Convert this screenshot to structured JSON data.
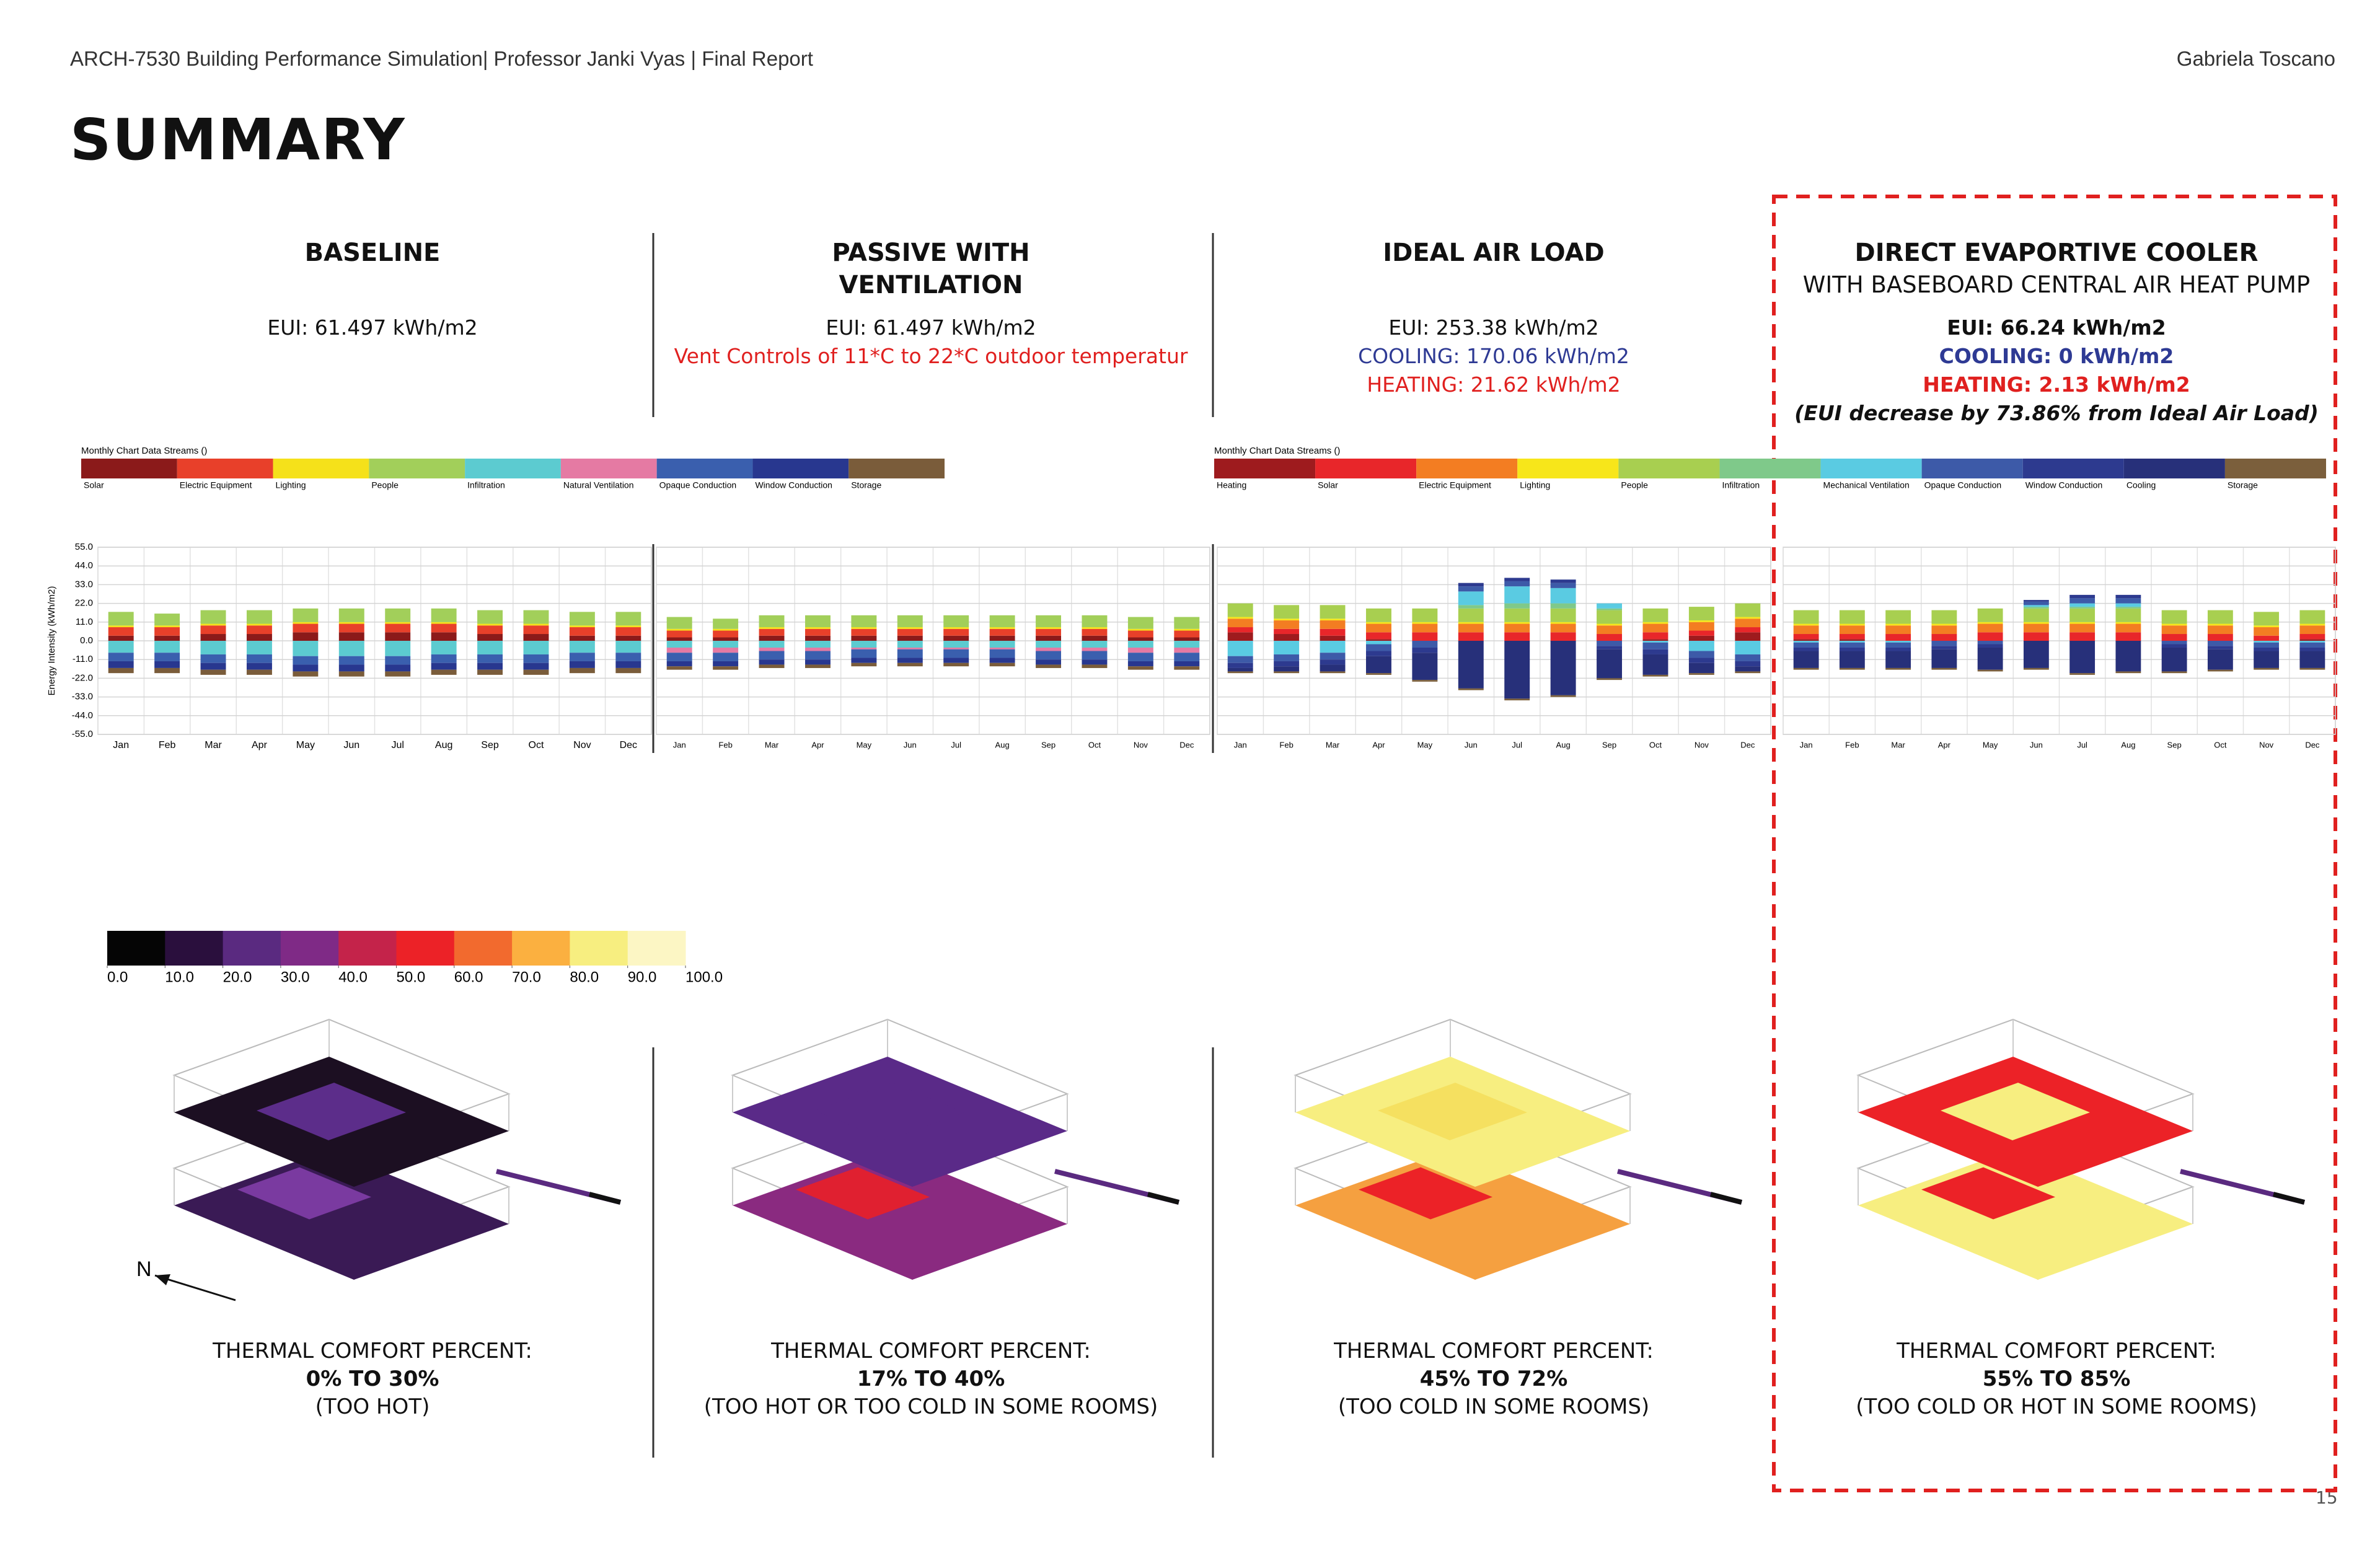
{
  "header": {
    "course": "ARCH-7530 Building Performance Simulation| Professor Janki Vyas | Final Report",
    "author": "Gabriela Toscano",
    "title": "SUMMARY",
    "page": "15"
  },
  "columns": [
    {
      "title_lines": [
        "BASELINE"
      ],
      "lines": [
        {
          "text": "EUI: 61.497  kWh/m2",
          "color": "#111111"
        }
      ],
      "comfort": {
        "label": "THERMAL COMFORT PERCENT:",
        "range": "0% TO 30%",
        "note": "(TOO HOT)"
      }
    },
    {
      "title_lines": [
        "PASSIVE WITH",
        "VENTILATION"
      ],
      "lines": [
        {
          "text": "EUI: 61.497  kWh/m2",
          "color": "#111111"
        },
        {
          "text": "Vent Controls of 11*C  to 22*C outdoor temperatur",
          "color": "#e0201f"
        }
      ],
      "comfort": {
        "label": "THERMAL COMFORT PERCENT:",
        "range": "17% TO 40%",
        "note": "(TOO HOT OR TOO COLD IN SOME ROOMS)"
      }
    },
    {
      "title_lines": [
        "IDEAL AIR LOAD"
      ],
      "lines": [
        {
          "text": "EUI: 253.38 kWh/m2",
          "color": "#111111"
        },
        {
          "text": "COOLING: 170.06 kWh/m2",
          "color": "#2e3a94"
        },
        {
          "text": "HEATING: 21.62 kWh/m2",
          "color": "#e0201f"
        }
      ],
      "comfort": {
        "label": "THERMAL COMFORT PERCENT:",
        "range": "45% TO 72%",
        "note": "(TOO COLD IN SOME ROOMS)"
      }
    },
    {
      "title_lines": [
        "DIRECT EVAPORTIVE COOLER"
      ],
      "subtitle": "WITH BASEBOARD CENTRAL AIR HEAT PUMP",
      "lines": [
        {
          "text": "EUI: 66.24 kWh/m2",
          "color": "#111111",
          "bold": true
        },
        {
          "text": "COOLING:  0 kWh/m2",
          "color": "#2e3a94",
          "bold": true
        },
        {
          "text": "HEATING: 2.13 kWh/m2",
          "color": "#e0201f",
          "bold": true
        },
        {
          "text": "(EUI decrease by 73.86% from Ideal Air Load)",
          "color": "#111111",
          "bold": true,
          "italic": true
        }
      ],
      "comfort": {
        "label": "THERMAL COMFORT PERCENT:",
        "range": "55% TO 85%",
        "note": "(TOO COLD OR HOT IN SOME ROOMS)"
      }
    }
  ],
  "chart_data": [
    {
      "type": "bar",
      "stacked": true,
      "legend_title": "Monthly Chart Data Streams ()",
      "ylabel": "Energy Intensity (kWh/m2)",
      "grid": true,
      "categories": [
        "Jan",
        "Feb",
        "Mar",
        "Apr",
        "May",
        "Jun",
        "Jul",
        "Aug",
        "Sep",
        "Oct",
        "Nov",
        "Dec"
      ],
      "ylim": [
        -55,
        55
      ],
      "yticks": [
        {
          "value": 55,
          "label": "55.0"
        },
        {
          "value": 44,
          "label": "44.0"
        },
        {
          "value": 33,
          "label": "33.0"
        },
        {
          "value": 22,
          "label": "22.0"
        },
        {
          "value": 11,
          "label": "11.0"
        },
        {
          "value": 0,
          "label": "0.0"
        },
        {
          "value": -11,
          "label": "-11.0"
        },
        {
          "value": -22,
          "label": "-22.0"
        },
        {
          "value": -33,
          "label": "-33.0"
        },
        {
          "value": -44,
          "label": "-44.0"
        },
        {
          "value": -55,
          "label": "-55.0"
        }
      ],
      "series": [
        {
          "name": "Solar",
          "color": "#8b1a1a",
          "values": [
            3,
            3,
            4,
            4,
            5,
            5,
            5,
            5,
            4,
            4,
            3,
            3
          ]
        },
        {
          "name": "Electric Equipment",
          "color": "#e8402a",
          "values": [
            5,
            5,
            5,
            5,
            5,
            5,
            5,
            5,
            5,
            5,
            5,
            5
          ]
        },
        {
          "name": "Lighting",
          "color": "#f5e11a",
          "values": [
            1,
            1,
            1,
            1,
            1,
            1,
            1,
            1,
            1,
            1,
            1,
            1
          ]
        },
        {
          "name": "People",
          "color": "#a2cf5a",
          "values": [
            8,
            7,
            8,
            8,
            8,
            8,
            8,
            8,
            8,
            8,
            8,
            8
          ]
        },
        {
          "name": "Infiltration",
          "color": "#5ccbd0",
          "values": [
            -7,
            -7,
            -8,
            -8,
            -9,
            -9,
            -9,
            -8,
            -8,
            -8,
            -7,
            -7
          ]
        },
        {
          "name": "Natural Ventilation",
          "color": "#e57aa3",
          "values": [
            0,
            0,
            0,
            0,
            0,
            0,
            0,
            0,
            0,
            0,
            0,
            0
          ]
        },
        {
          "name": "Opaque Conduction",
          "color": "#3a5fae",
          "values": [
            -5,
            -5,
            -5,
            -5,
            -5,
            -5,
            -5,
            -5,
            -5,
            -5,
            -5,
            -5
          ]
        },
        {
          "name": "Window Conduction",
          "color": "#28378f",
          "values": [
            -4,
            -4,
            -4,
            -4,
            -4,
            -4,
            -4,
            -4,
            -4,
            -4,
            -4,
            -4
          ]
        },
        {
          "name": "Storage",
          "color": "#7a5c3a",
          "values": [
            -3,
            -3,
            -3,
            -3,
            -3,
            -3,
            -3,
            -3,
            -3,
            -3,
            -3,
            -3
          ]
        }
      ]
    },
    {
      "type": "bar",
      "stacked": true,
      "grid": true,
      "categories": [
        "Jan",
        "Feb",
        "Mar",
        "Apr",
        "May",
        "Jun",
        "Jul",
        "Aug",
        "Sep",
        "Oct",
        "Nov",
        "Dec"
      ],
      "ylim": [
        -55,
        55
      ],
      "series": [
        {
          "color": "#8b1a1a",
          "values": [
            2,
            2,
            3,
            3,
            3,
            3,
            3,
            3,
            3,
            3,
            2,
            2
          ]
        },
        {
          "color": "#e8402a",
          "values": [
            4,
            4,
            4,
            4,
            4,
            4,
            4,
            4,
            4,
            4,
            4,
            4
          ]
        },
        {
          "color": "#f5e11a",
          "values": [
            1,
            1,
            1,
            1,
            1,
            1,
            1,
            1,
            1,
            1,
            1,
            1
          ]
        },
        {
          "color": "#a2cf5a",
          "values": [
            7,
            6,
            7,
            7,
            7,
            7,
            7,
            7,
            7,
            7,
            7,
            7
          ]
        },
        {
          "color": "#5ccbd0",
          "values": [
            -4,
            -4,
            -4,
            -4,
            -4,
            -4,
            -4,
            -4,
            -4,
            -4,
            -4,
            -4
          ]
        },
        {
          "color": "#e57aa3",
          "values": [
            -3,
            -3,
            -2,
            -2,
            -1,
            -1,
            -1,
            -1,
            -2,
            -2,
            -3,
            -3
          ]
        },
        {
          "color": "#3a5fae",
          "values": [
            -5,
            -5,
            -5,
            -5,
            -5,
            -5,
            -5,
            -5,
            -5,
            -5,
            -5,
            -5
          ]
        },
        {
          "color": "#28378f",
          "values": [
            -3,
            -3,
            -3,
            -3,
            -3,
            -3,
            -3,
            -3,
            -3,
            -3,
            -3,
            -3
          ]
        },
        {
          "color": "#7a5c3a",
          "values": [
            -2,
            -2,
            -2,
            -2,
            -2,
            -2,
            -2,
            -2,
            -2,
            -2,
            -2,
            -2
          ]
        }
      ]
    },
    {
      "type": "bar",
      "stacked": true,
      "legend_title": "Monthly Chart Data Streams ()",
      "grid": true,
      "categories": [
        "Jan",
        "Feb",
        "Mar",
        "Apr",
        "May",
        "Jun",
        "Jul",
        "Aug",
        "Sep",
        "Oct",
        "Nov",
        "Dec"
      ],
      "ylim": [
        -55,
        55
      ],
      "series": [
        {
          "name": "Heating",
          "color": "#9e1b1e",
          "values": [
            5,
            4,
            3,
            1,
            0,
            0,
            0,
            0,
            0,
            1,
            3,
            5
          ]
        },
        {
          "name": "Solar",
          "color": "#e8262a",
          "values": [
            3,
            3,
            4,
            4,
            5,
            5,
            5,
            5,
            4,
            4,
            3,
            3
          ]
        },
        {
          "name": "Electric Equipment",
          "color": "#f37d22",
          "values": [
            5,
            5,
            5,
            5,
            5,
            5,
            5,
            5,
            5,
            5,
            5,
            5
          ]
        },
        {
          "name": "Lighting",
          "color": "#f7e61a",
          "values": [
            1,
            1,
            1,
            1,
            1,
            1,
            1,
            1,
            1,
            1,
            1,
            1
          ]
        },
        {
          "name": "People",
          "color": "#a8cf50",
          "values": [
            8,
            8,
            8,
            8,
            8,
            8,
            8,
            8,
            8,
            8,
            8,
            8
          ]
        },
        {
          "name": "Infiltration",
          "color": "#7fc98a",
          "values": [
            0,
            0,
            0,
            0,
            0,
            2,
            3,
            3,
            1,
            0,
            0,
            0
          ]
        },
        {
          "name": "Mechanical Ventilation",
          "color": "#5acbe2",
          "values": [
            -9,
            -8,
            -7,
            -2,
            0,
            8,
            10,
            9,
            3,
            -1,
            -6,
            -8
          ]
        },
        {
          "name": "Opaque Conduction",
          "color": "#3d5aa8",
          "values": [
            -4,
            -4,
            -4,
            -4,
            -4,
            3,
            3,
            3,
            -3,
            -4,
            -4,
            -4
          ]
        },
        {
          "name": "Window Conduction",
          "color": "#2d3a8f",
          "values": [
            -3,
            -3,
            -3,
            -3,
            -3,
            2,
            2,
            2,
            -2,
            -3,
            -3,
            -3
          ]
        },
        {
          "name": "Cooling",
          "color": "#27307a",
          "values": [
            -2,
            -3,
            -4,
            -10,
            -16,
            -28,
            -34,
            -32,
            -17,
            -12,
            -6,
            -3
          ]
        },
        {
          "name": "Storage",
          "color": "#7b5f3c",
          "values": [
            -1,
            -1,
            -1,
            -1,
            -1,
            -1,
            -1,
            -1,
            -1,
            -1,
            -1,
            -1
          ]
        }
      ]
    },
    {
      "type": "bar",
      "stacked": true,
      "grid": true,
      "categories": [
        "Jan",
        "Feb",
        "Mar",
        "Apr",
        "May",
        "Jun",
        "Jul",
        "Aug",
        "Sep",
        "Oct",
        "Nov",
        "Dec"
      ],
      "ylim": [
        -55,
        55
      ],
      "series": [
        {
          "color": "#9e1b1e",
          "values": [
            1,
            1,
            0,
            0,
            0,
            0,
            0,
            0,
            0,
            0,
            0,
            1
          ]
        },
        {
          "color": "#e8262a",
          "values": [
            3,
            3,
            4,
            4,
            5,
            5,
            5,
            5,
            4,
            4,
            3,
            3
          ]
        },
        {
          "color": "#f37d22",
          "values": [
            5,
            5,
            5,
            5,
            5,
            5,
            5,
            5,
            5,
            5,
            5,
            5
          ]
        },
        {
          "color": "#f7e61a",
          "values": [
            1,
            1,
            1,
            1,
            1,
            1,
            1,
            1,
            1,
            1,
            1,
            1
          ]
        },
        {
          "color": "#a8cf50",
          "values": [
            8,
            8,
            8,
            8,
            8,
            8,
            8,
            8,
            8,
            8,
            8,
            8
          ]
        },
        {
          "color": "#7fc98a",
          "values": [
            0,
            0,
            0,
            0,
            0,
            1,
            1,
            1,
            0,
            0,
            0,
            0
          ]
        },
        {
          "color": "#5acbe2",
          "values": [
            -1,
            -1,
            -1,
            0,
            0,
            1,
            2,
            2,
            0,
            0,
            -1,
            -1
          ]
        },
        {
          "color": "#3d5aa8",
          "values": [
            -3,
            -3,
            -3,
            -3,
            -2,
            2,
            3,
            3,
            -2,
            -3,
            -3,
            -3
          ]
        },
        {
          "color": "#2d3a8f",
          "values": [
            -2,
            -2,
            -2,
            -2,
            -2,
            1,
            2,
            2,
            -2,
            -2,
            -2,
            -2
          ]
        },
        {
          "color": "#27307a",
          "values": [
            -10,
            -10,
            -10,
            -11,
            -13,
            -16,
            -19,
            -18,
            -14,
            -12,
            -10,
            -10
          ]
        },
        {
          "color": "#7b5f3c",
          "values": [
            -1,
            -1,
            -1,
            -1,
            -1,
            -1,
            -1,
            -1,
            -1,
            -1,
            -1,
            -1
          ]
        }
      ]
    }
  ],
  "color_scale": {
    "ticks": [
      {
        "value": 0,
        "label": "0.0"
      },
      {
        "value": 10,
        "label": "10.0"
      },
      {
        "value": 20,
        "label": "20.0"
      },
      {
        "value": 30,
        "label": "30.0"
      },
      {
        "value": 40,
        "label": "40.0"
      },
      {
        "value": 50,
        "label": "50.0"
      },
      {
        "value": 60,
        "label": "60.0"
      },
      {
        "value": 70,
        "label": "70.0"
      },
      {
        "value": 80,
        "label": "80.0"
      },
      {
        "value": 90,
        "label": "90.0"
      },
      {
        "value": 100,
        "label": "100.0"
      }
    ],
    "colors": [
      "#050505",
      "#2a0f3d",
      "#5a2a80",
      "#7f2a86",
      "#c4234a",
      "#ec2227",
      "#f26a2e",
      "#fbb040",
      "#f7ee80",
      "#fcf6c4"
    ]
  }
}
